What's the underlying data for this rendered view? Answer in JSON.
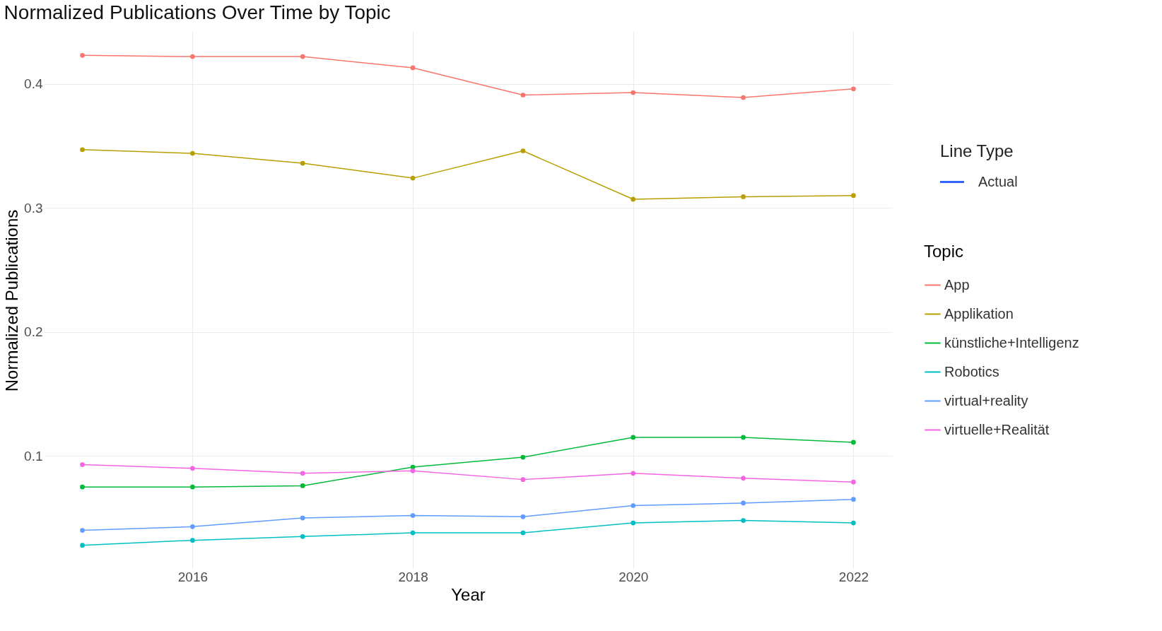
{
  "chart_data": {
    "type": "line",
    "title": "Normalized Publications Over Time by Topic",
    "xlabel": "Year",
    "ylabel": "Normalized Publications",
    "legend_title": "Topic",
    "annotations": [
      "Line Type",
      "Actual"
    ],
    "x": [
      2015,
      2016,
      2017,
      2018,
      2019,
      2020,
      2021,
      2022
    ],
    "series": [
      {
        "name": "App",
        "color": "#f8766d",
        "values": [
          0.423,
          0.422,
          0.422,
          0.413,
          0.391,
          0.393,
          0.389,
          0.396
        ]
      },
      {
        "name": "Applikation",
        "color": "#b79f00",
        "values": [
          0.347,
          0.344,
          0.336,
          0.324,
          0.346,
          0.307,
          0.309,
          0.31
        ]
      },
      {
        "name": "künstliche+Intelligenz",
        "color": "#00ba38",
        "values": [
          0.075,
          0.075,
          0.076,
          0.091,
          0.099,
          0.115,
          0.115,
          0.111
        ]
      },
      {
        "name": "Robotics",
        "color": "#00bfc4",
        "values": [
          0.028,
          0.032,
          0.035,
          0.038,
          0.038,
          0.046,
          0.048,
          0.046
        ]
      },
      {
        "name": "virtual+reality",
        "color": "#619cff",
        "values": [
          0.04,
          0.043,
          0.05,
          0.052,
          0.051,
          0.06,
          0.062,
          0.065
        ]
      },
      {
        "name": "virtuelle+Realität",
        "color": "#f564e3",
        "values": [
          0.093,
          0.09,
          0.086,
          0.088,
          0.081,
          0.086,
          0.082,
          0.079
        ]
      }
    ],
    "xlim": [
      2014.65,
      2022.35
    ],
    "xticks": [
      2016,
      2018,
      2020,
      2022
    ],
    "ylim": [
      0.009,
      0.442
    ],
    "yticks": [
      0.1,
      0.2,
      0.3,
      0.4
    ],
    "grid": true,
    "legend": "right",
    "marker": "circle",
    "line_style": "solid"
  }
}
